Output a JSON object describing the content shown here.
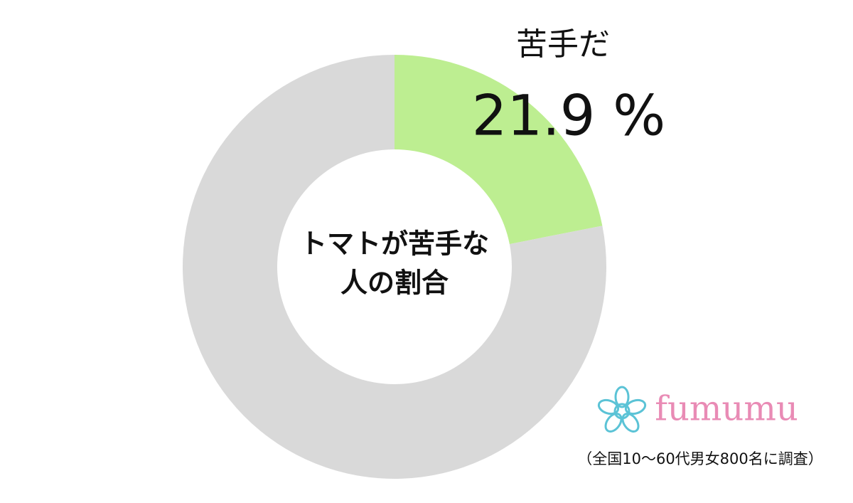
{
  "chart_data": {
    "type": "donut",
    "title_lines": [
      "トマトが苦手な",
      "人の割合"
    ],
    "categories": [
      "苦手だ",
      null
    ],
    "values": [
      21.9,
      78.1
    ],
    "value_labels": [
      "21.9 %",
      null
    ],
    "colors": [
      "#bdee91",
      "#d9d9d9"
    ],
    "brand": "fumumu",
    "note": "（全国10～60代男女800名に調査）"
  }
}
